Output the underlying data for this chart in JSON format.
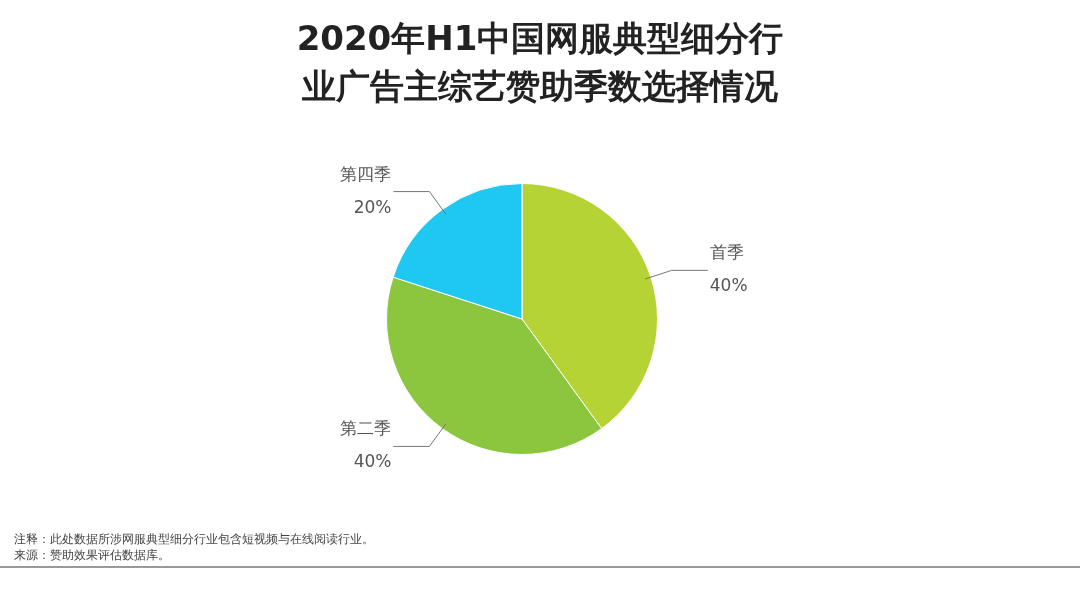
{
  "chart_data": {
    "type": "pie",
    "title": "2020年H1中国网服典型细分行业广告主综艺赞助季数选择情况",
    "categories": [
      "首季",
      "第二季",
      "第四季"
    ],
    "values": [
      40,
      40,
      20
    ],
    "value_labels": [
      "40%",
      "40%",
      "20%"
    ],
    "colors": [
      "#b5d334",
      "#8cc63f",
      "#1fc8f0"
    ],
    "legend": false,
    "annotations": [
      "注释：此处数据所涉网服典型细分行业包含短视频与在线阅读行业。",
      "来源：赞助效果评估数据库。"
    ]
  }
}
